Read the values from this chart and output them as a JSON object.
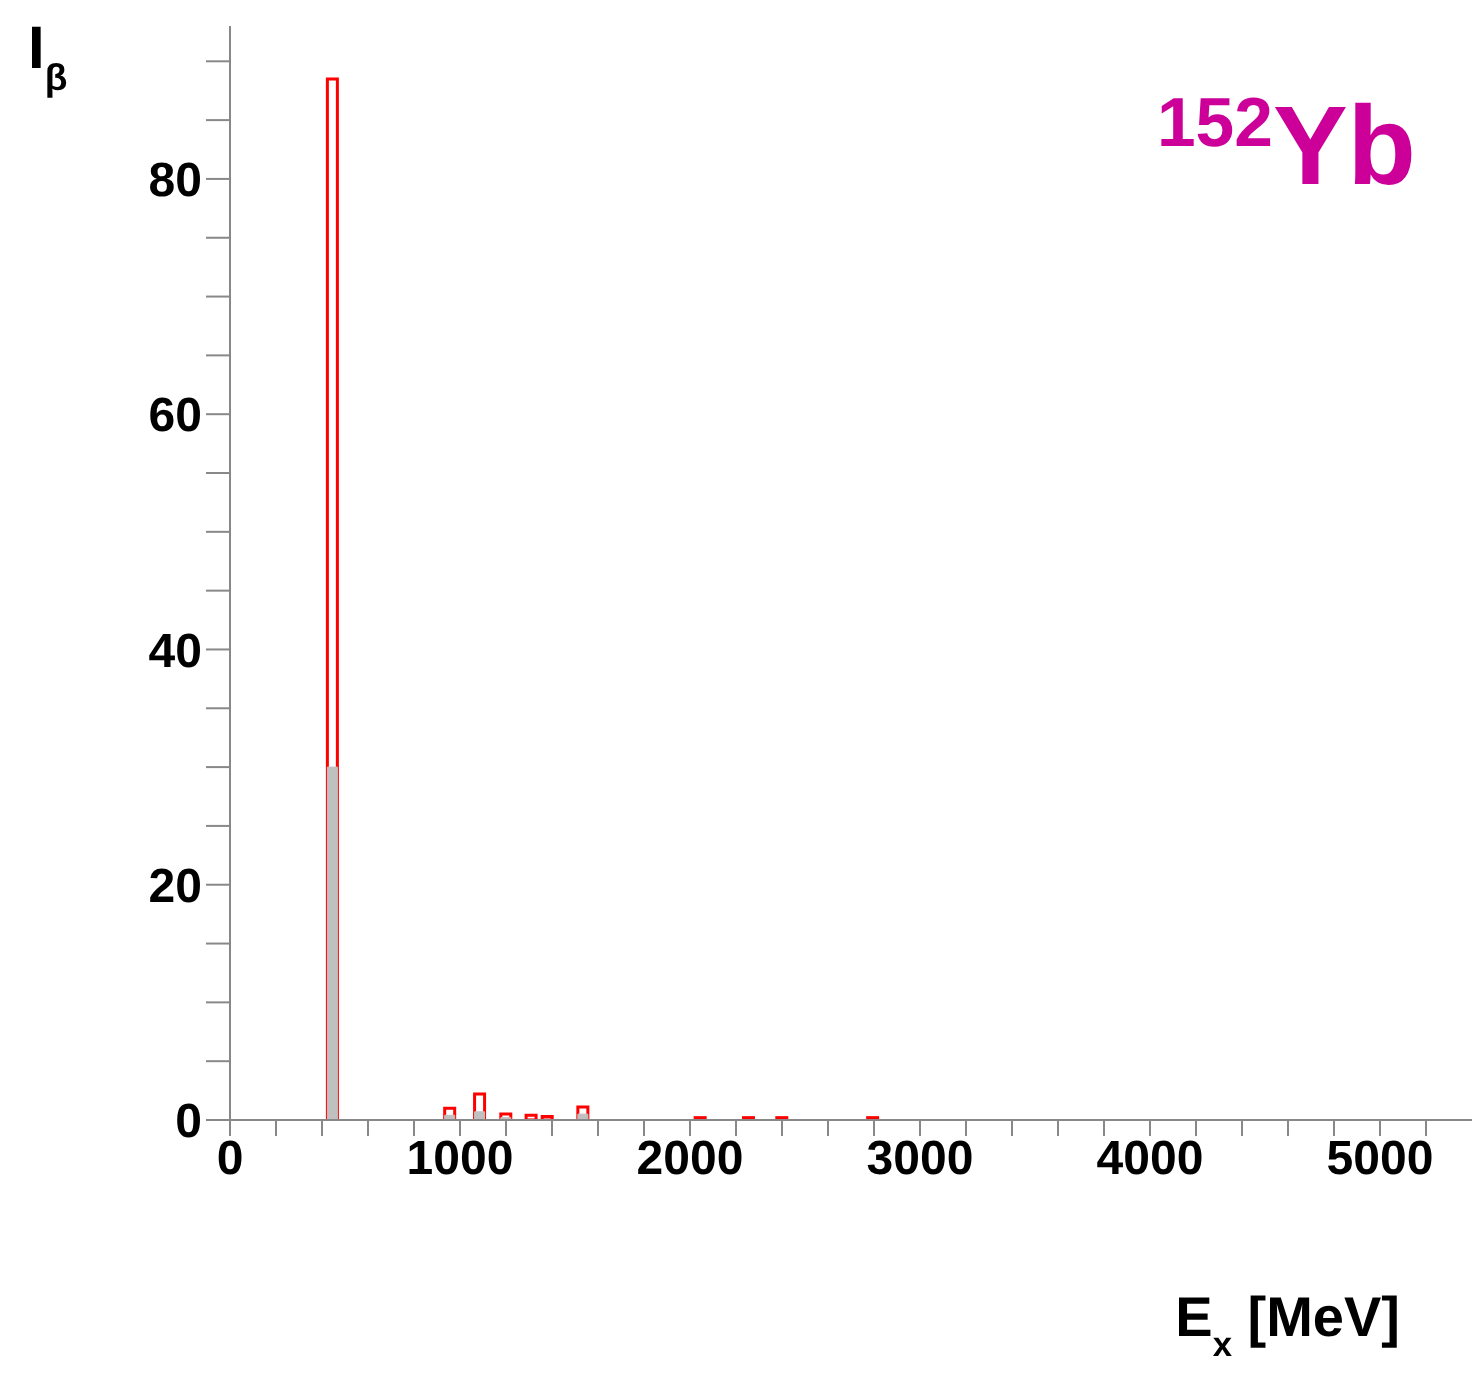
{
  "chart_data": {
    "type": "bar",
    "xlabel": "E$_{x}$ [MeV]",
    "ylabel": "I$_{β}$",
    "annotations": [
      "$^{152}$Yb"
    ],
    "x": [
      441,
      951,
      1081,
      1195,
      1305,
      1375,
      1530,
      2040,
      2250,
      2395,
      2790
    ],
    "series": [
      {
        "color": "#ff0000",
        "values": [
          88.5,
          1.0,
          2.2,
          0.5,
          0.4,
          0.3,
          1.1,
          0.2,
          0.2,
          0.2,
          0.2
        ]
      },
      {
        "color": "#c0c0c0",
        "values": [
          30,
          0.4,
          0.7,
          0.2,
          null,
          null,
          0.5,
          null,
          null,
          null,
          null
        ]
      }
    ],
    "xlim": [
      0,
      5400
    ],
    "ylim": [
      0,
      93
    ],
    "xticks": [
      0,
      {
        "value": 200,
        "label": null
      },
      {
        "value": 400,
        "label": null
      },
      {
        "value": 600,
        "label": null
      },
      {
        "value": 800,
        "label": null
      },
      1000,
      {
        "value": 1200,
        "label": null
      },
      {
        "value": 1400,
        "label": null
      },
      {
        "value": 1600,
        "label": null
      },
      {
        "value": 1800,
        "label": null
      },
      2000,
      {
        "value": 2200,
        "label": null
      },
      {
        "value": 2400,
        "label": null
      },
      {
        "value": 2600,
        "label": null
      },
      {
        "value": 2800,
        "label": null
      },
      3000,
      {
        "value": 3200,
        "label": null
      },
      {
        "value": 3400,
        "label": null
      },
      {
        "value": 3600,
        "label": null
      },
      {
        "value": 3800,
        "label": null
      },
      4000,
      {
        "value": 4200,
        "label": null
      },
      {
        "value": 4400,
        "label": null
      },
      {
        "value": 4600,
        "label": null
      },
      {
        "value": 4800,
        "label": null
      },
      5000,
      {
        "value": 5200,
        "label": null
      }
    ],
    "yticks": [
      0,
      {
        "value": 5,
        "label": null
      },
      {
        "value": 10,
        "label": null
      },
      {
        "value": 15,
        "label": null
      },
      20,
      {
        "value": 25,
        "label": null
      },
      {
        "value": 30,
        "label": null
      },
      {
        "value": 35,
        "label": null
      },
      40,
      {
        "value": 45,
        "label": null
      },
      {
        "value": 50,
        "label": null
      },
      {
        "value": 55,
        "label": null
      },
      60,
      {
        "value": 65,
        "label": null
      },
      {
        "value": 70,
        "label": null
      },
      {
        "value": 75,
        "label": null
      },
      80,
      {
        "value": 85,
        "label": null
      },
      {
        "value": 90,
        "label": null
      }
    ],
    "grid": false,
    "legend": false
  }
}
